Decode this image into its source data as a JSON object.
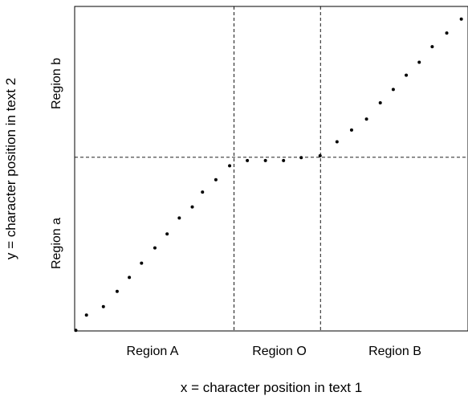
{
  "chart_data": {
    "type": "scatter",
    "title": "",
    "xlabel": "x = character position in text 1",
    "ylabel": "y = character position in text 2",
    "xlim": [
      0,
      100
    ],
    "ylim": [
      0,
      100
    ],
    "grid": false,
    "axis_ticks": false,
    "dividers": {
      "x": [
        40.5,
        62.5
      ],
      "y": [
        53.5
      ]
    },
    "x_regions": [
      "Region A",
      "Region O",
      "Region B"
    ],
    "y_regions": [
      "Region a",
      "Region b"
    ],
    "points": [
      {
        "x": 0.3,
        "y": 0.2
      },
      {
        "x": 3.0,
        "y": 4.9
      },
      {
        "x": 7.3,
        "y": 7.5
      },
      {
        "x": 10.8,
        "y": 12.2
      },
      {
        "x": 13.9,
        "y": 16.5
      },
      {
        "x": 17.0,
        "y": 20.9
      },
      {
        "x": 20.4,
        "y": 25.6
      },
      {
        "x": 23.5,
        "y": 29.9
      },
      {
        "x": 26.6,
        "y": 34.8
      },
      {
        "x": 29.9,
        "y": 38.2
      },
      {
        "x": 32.5,
        "y": 42.8
      },
      {
        "x": 35.9,
        "y": 46.6
      },
      {
        "x": 39.4,
        "y": 50.9
      },
      {
        "x": 43.9,
        "y": 52.5
      },
      {
        "x": 48.5,
        "y": 52.5
      },
      {
        "x": 53.1,
        "y": 52.5
      },
      {
        "x": 57.6,
        "y": 53.4
      },
      {
        "x": 62.4,
        "y": 54.0
      },
      {
        "x": 66.7,
        "y": 58.3
      },
      {
        "x": 70.4,
        "y": 61.9
      },
      {
        "x": 74.2,
        "y": 65.3
      },
      {
        "x": 77.7,
        "y": 70.3
      },
      {
        "x": 81.0,
        "y": 74.4
      },
      {
        "x": 84.3,
        "y": 78.8
      },
      {
        "x": 87.6,
        "y": 82.8
      },
      {
        "x": 90.9,
        "y": 87.6
      },
      {
        "x": 94.6,
        "y": 91.8
      },
      {
        "x": 98.3,
        "y": 96.1
      }
    ]
  }
}
